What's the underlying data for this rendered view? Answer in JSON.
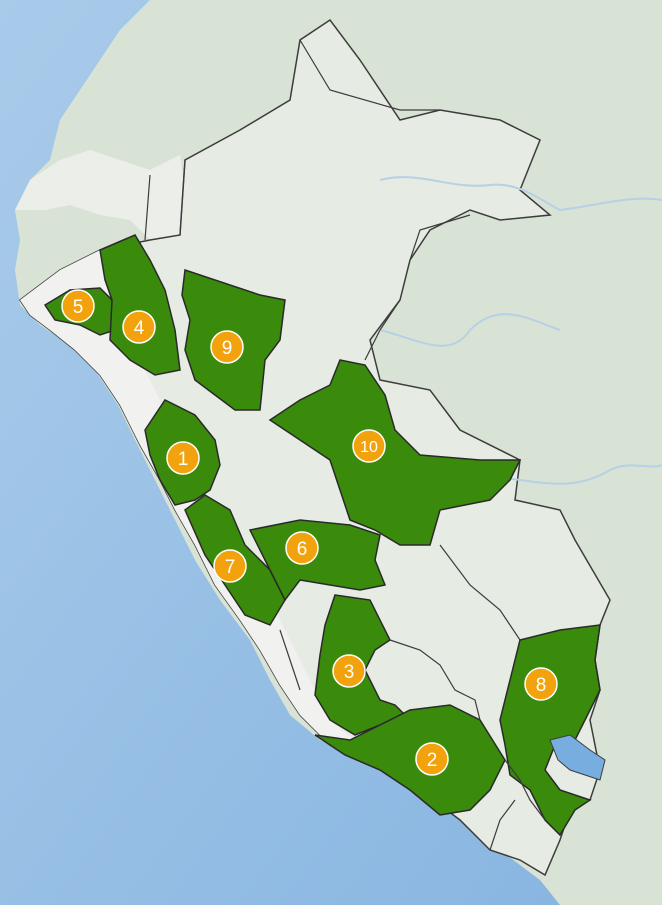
{
  "colors": {
    "ocean": "#9fc3e6",
    "ocean_deep": "#7eaede",
    "land_inland": "#d6e1d2",
    "land_coast": "#ecedeb",
    "region_highlight": "#3a8a0c",
    "region_plain": "#f2f2f0",
    "border": "#3c3c3c",
    "river": "#b8d2e8",
    "lake": "#7fb3e2",
    "badge_fill": "#f2a20c",
    "badge_ring": "#ffffff",
    "badge_text": "#ffffff"
  },
  "markers": [
    {
      "label": "1"
    },
    {
      "label": "2"
    },
    {
      "label": "3"
    },
    {
      "label": "4"
    },
    {
      "label": "5"
    },
    {
      "label": "6"
    },
    {
      "label": "7"
    },
    {
      "label": "8"
    },
    {
      "label": "9"
    },
    {
      "label": "10"
    }
  ]
}
